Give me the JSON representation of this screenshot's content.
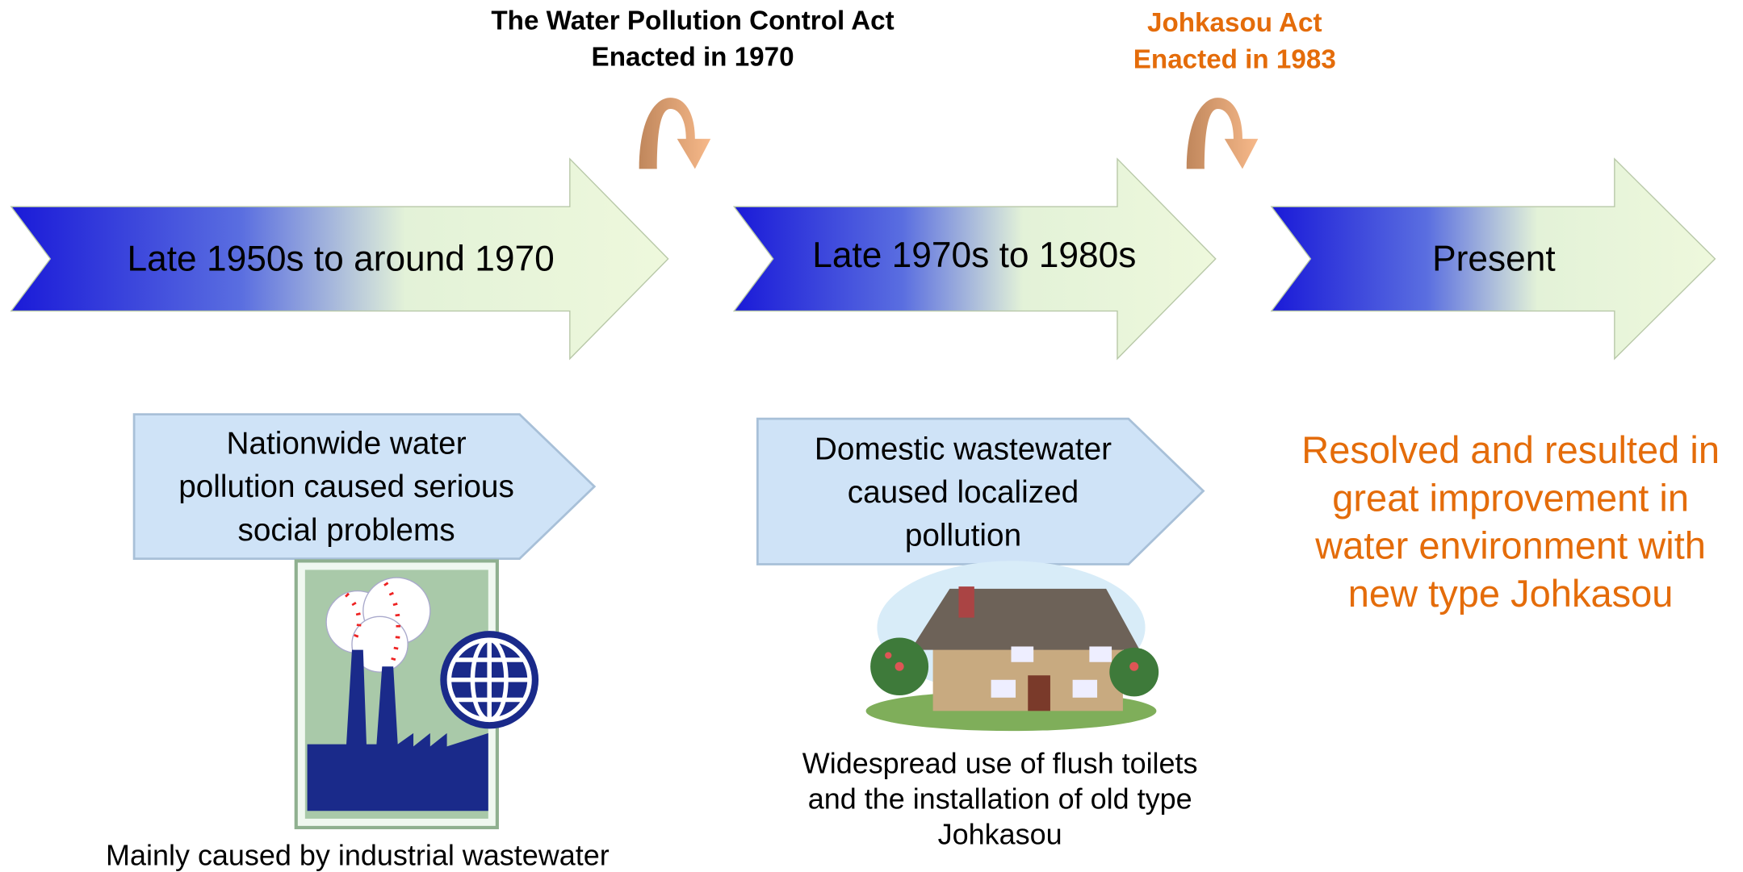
{
  "acts": [
    {
      "lines": [
        "The Water Pollution Control Act",
        "Enacted in 1970"
      ]
    },
    {
      "lines": [
        "Johkasou Act",
        "Enacted in 1983"
      ]
    }
  ],
  "stages": [
    "Late 1950s to around 1970",
    "Late 1970s to 1980s",
    "Present"
  ],
  "problems": [
    {
      "lines": [
        "Nationwide water",
        "pollution caused serious",
        "social problems"
      ]
    },
    {
      "lines": [
        "Domestic wastewater",
        "caused localized",
        "pollution"
      ]
    }
  ],
  "captions": [
    {
      "lines": [
        "Mainly caused by industrial wastewater"
      ]
    },
    {
      "lines": [
        "Widespread use of flush toilets",
        "and the installation of old type",
        "Johkasou"
      ]
    }
  ],
  "result": {
    "lines": [
      "Resolved and resulted in",
      "great improvement in",
      "water environment with",
      "new type Johkasou"
    ]
  }
}
